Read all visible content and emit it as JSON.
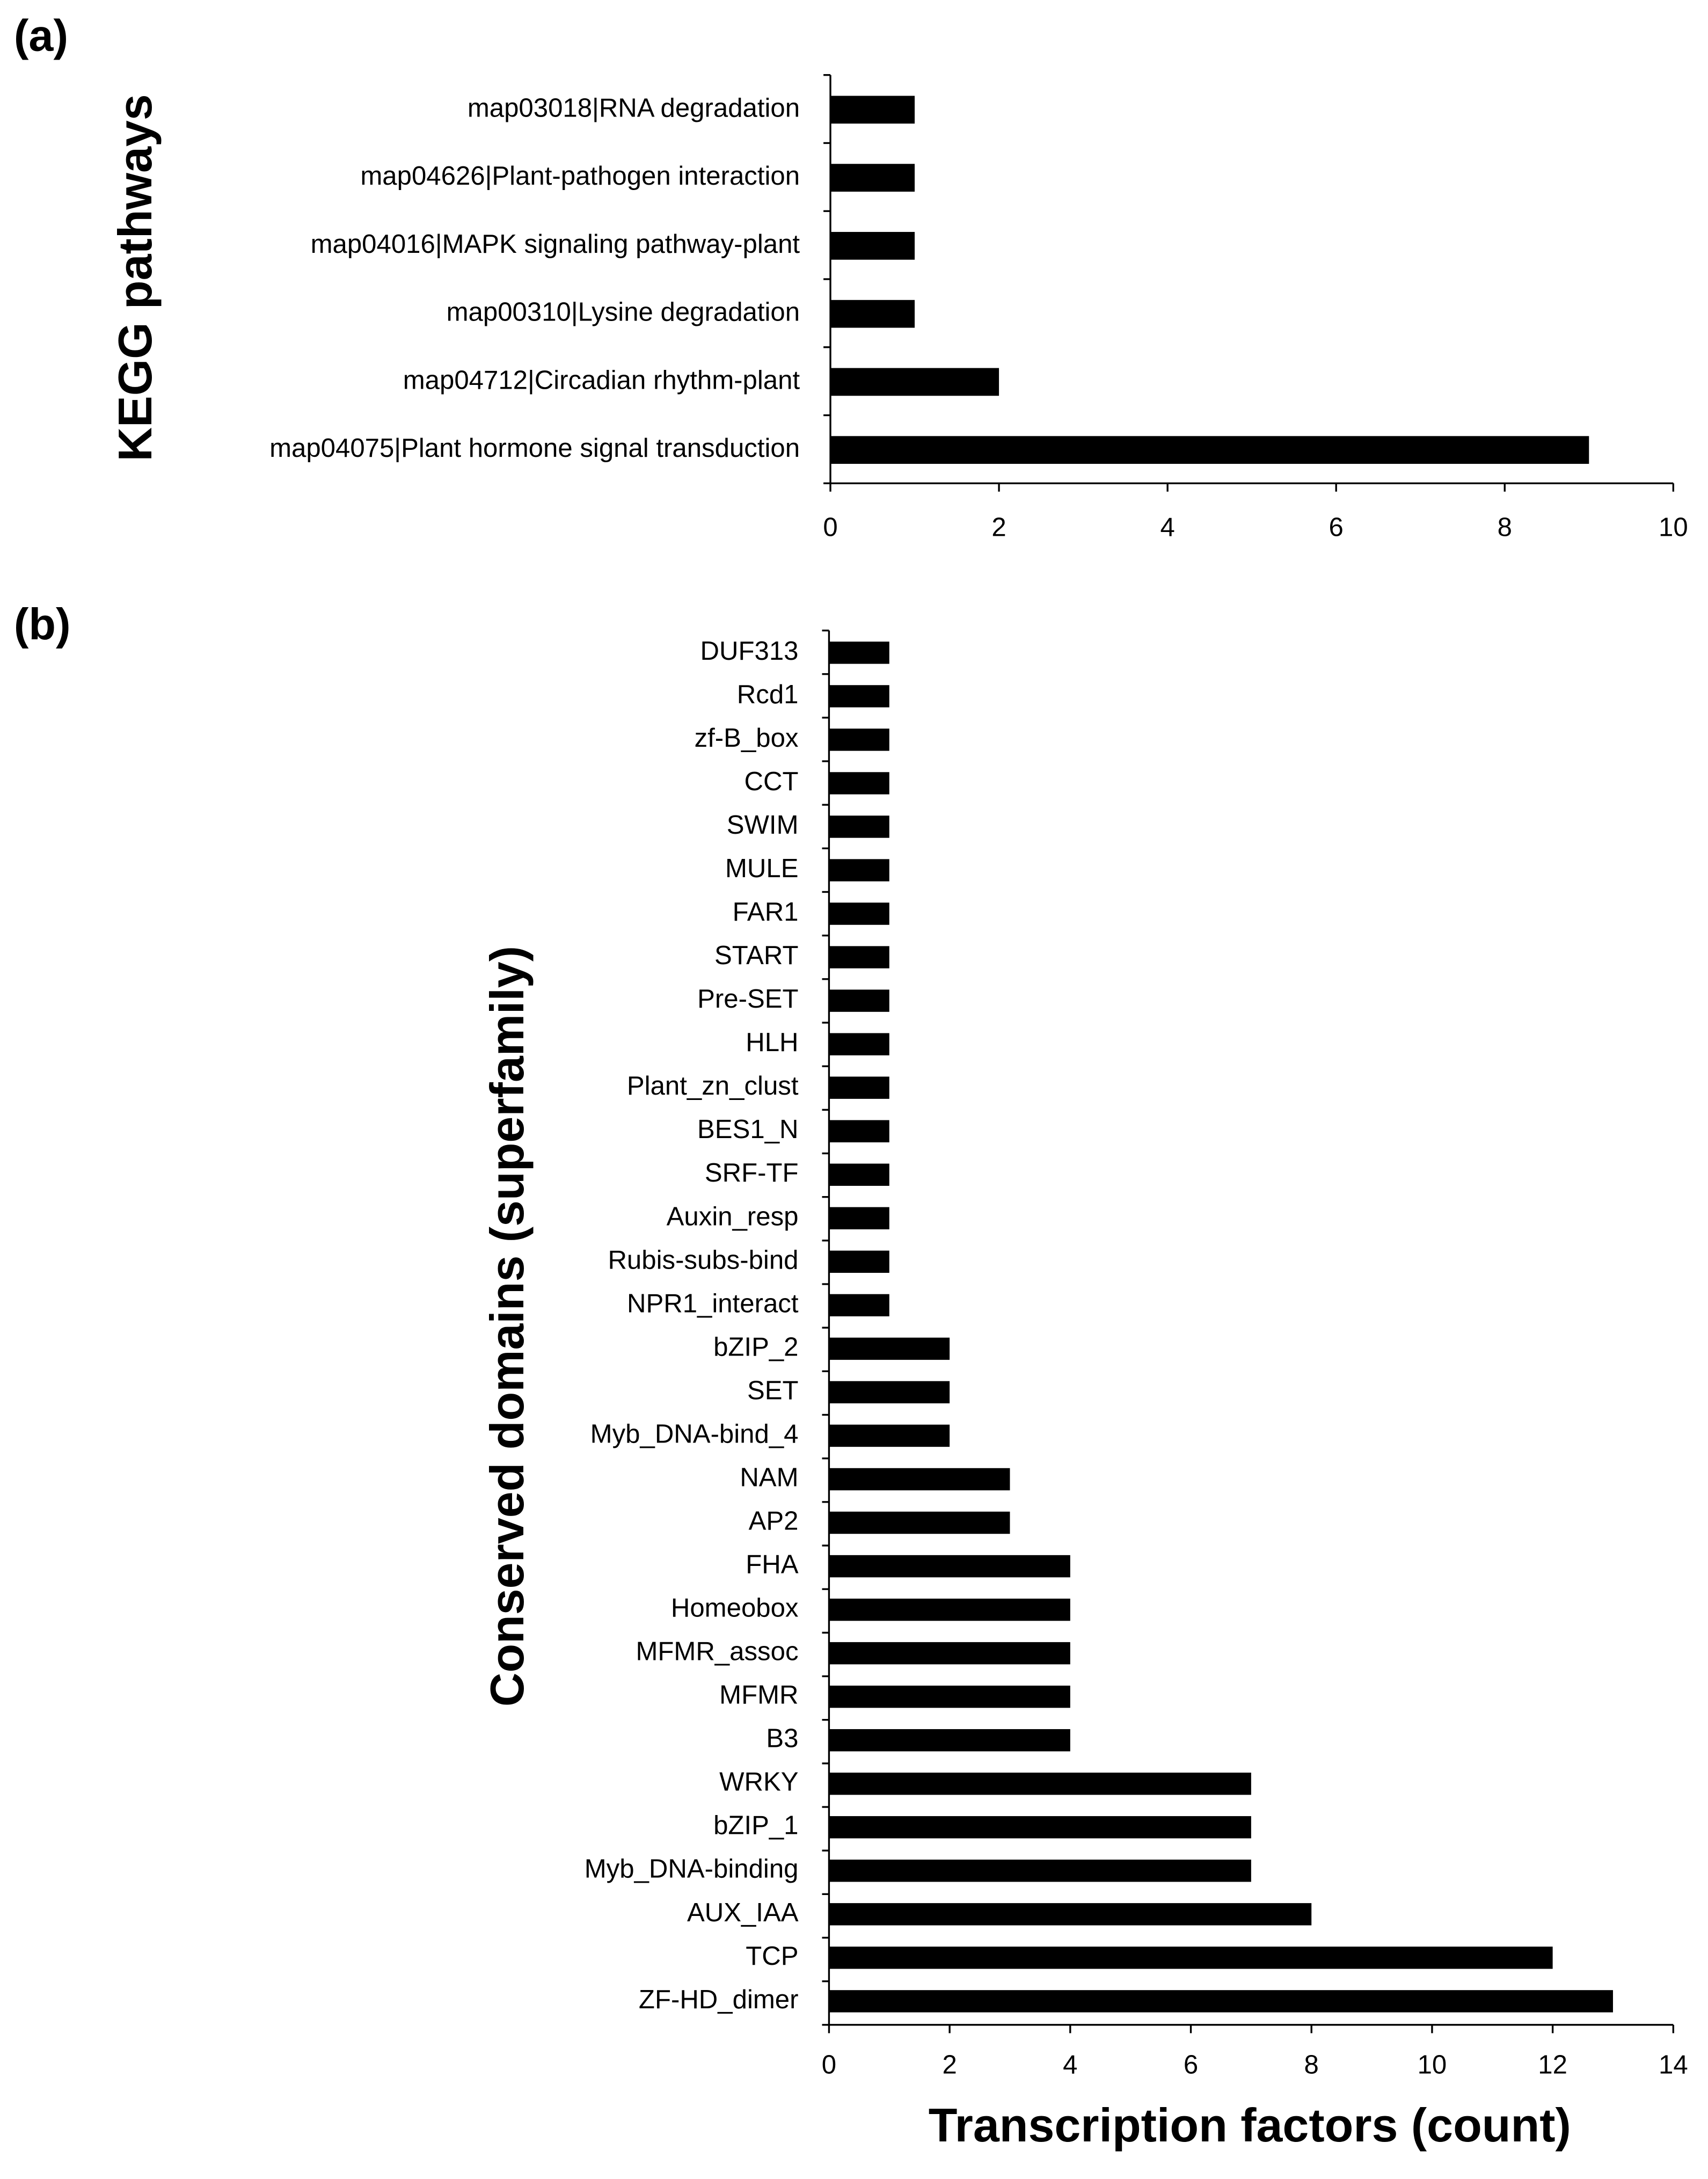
{
  "chart_data": [
    {
      "type": "barh",
      "panel_label": "(a)",
      "ylabel": "KEGG pathways",
      "categories": [
        "map03018|RNA degradation",
        "map04626|Plant-pathogen interaction",
        "map04016|MAPK signaling pathway-plant",
        "map00310|Lysine degradation",
        "map04712|Circadian rhythm-plant",
        "map04075|Plant hormone signal transduction"
      ],
      "values": [
        1,
        1,
        1,
        1,
        2,
        9
      ],
      "color": "#000000",
      "xlim": [
        0,
        10
      ],
      "xticks": [
        0,
        2,
        4,
        6,
        8,
        10
      ]
    },
    {
      "type": "barh",
      "panel_label": "(b)",
      "ylabel": "Conserved domains (superfamily)",
      "xlabel": "Transcription factors (count)",
      "categories": [
        "DUF313",
        "Rcd1",
        "zf-B_box",
        "CCT",
        "SWIM",
        "MULE",
        "FAR1",
        "START",
        "Pre-SET",
        "HLH",
        "Plant_zn_clust",
        "BES1_N",
        "SRF-TF",
        "Auxin_resp",
        "Rubis-subs-bind",
        "NPR1_interact",
        "bZIP_2",
        "SET",
        "Myb_DNA-bind_4",
        "NAM",
        "AP2",
        "FHA",
        "Homeobox",
        "MFMR_assoc",
        "MFMR",
        "B3",
        "WRKY",
        "bZIP_1",
        "Myb_DNA-binding",
        "AUX_IAA",
        "TCP",
        "ZF-HD_dimer"
      ],
      "values": [
        1,
        1,
        1,
        1,
        1,
        1,
        1,
        1,
        1,
        1,
        1,
        1,
        1,
        1,
        1,
        1,
        2,
        2,
        2,
        3,
        3,
        4,
        4,
        4,
        4,
        4,
        7,
        7,
        7,
        8,
        12,
        13
      ],
      "color": "#000000",
      "xlim": [
        0,
        14
      ],
      "xticks": [
        0,
        2,
        4,
        6,
        8,
        10,
        12,
        14
      ]
    }
  ]
}
